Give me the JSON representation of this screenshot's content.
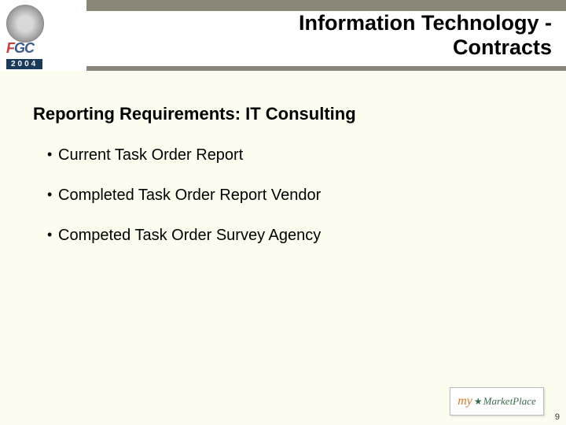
{
  "header": {
    "logo": {
      "text_f": "F",
      "text_g": "G",
      "text_c": "C",
      "year": "2004"
    },
    "title_line1": "Information Technology -",
    "title_line2": "Contracts"
  },
  "content": {
    "subtitle": "Reporting Requirements: IT Consulting",
    "bullets": [
      "Current Task Order Report",
      "Completed Task Order Report Vendor",
      "Competed Task Order Survey Agency"
    ]
  },
  "footer": {
    "logo_my": "my",
    "logo_mp": "MarketPlace"
  },
  "page_number": "9",
  "colors": {
    "background": "#fdfdef",
    "header_bar": "#8a8678",
    "text": "#000000"
  }
}
